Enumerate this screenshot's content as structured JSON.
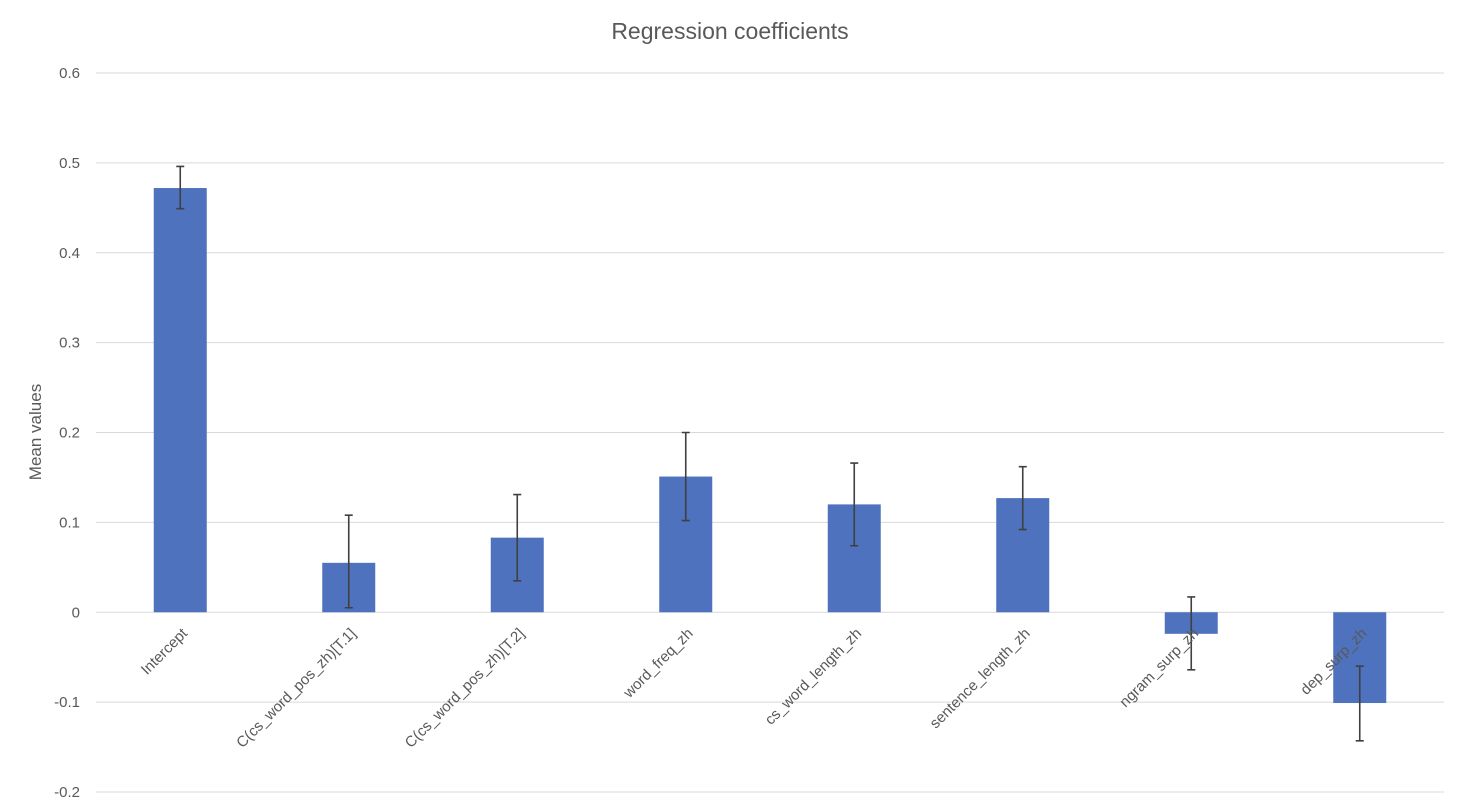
{
  "chart_data": {
    "type": "bar",
    "title": "Regression coefficients",
    "xlabel": "",
    "ylabel": "Mean values",
    "ylim": [
      -0.2,
      0.6
    ],
    "yticks": [
      -0.2,
      -0.1,
      0,
      0.1,
      0.2,
      0.3,
      0.4,
      0.5,
      0.6
    ],
    "ytick_labels": [
      "-0.2",
      "-0.1",
      "0",
      "0.1",
      "0.2",
      "0.3",
      "0.4",
      "0.5",
      "0.6"
    ],
    "grid": true,
    "legend": "none",
    "bar_color": "#4e72be",
    "error_bar_color": "#404040",
    "categories": [
      "Intercept",
      "C(cs_word_pos_zh)[T.1]",
      "C(cs_word_pos_zh)[T.2]",
      "word_freq_zh",
      "cs_word_length_zh",
      "sentence_length_zh",
      "ngram_surp_zh",
      "dep_surp_zh"
    ],
    "values": [
      0.472,
      0.055,
      0.083,
      0.151,
      0.12,
      0.127,
      -0.024,
      -0.101
    ],
    "error_low": [
      0.449,
      0.005,
      0.035,
      0.102,
      0.074,
      0.092,
      -0.064,
      -0.143
    ],
    "error_high": [
      0.496,
      0.108,
      0.131,
      0.2,
      0.166,
      0.162,
      0.017,
      -0.06
    ]
  }
}
